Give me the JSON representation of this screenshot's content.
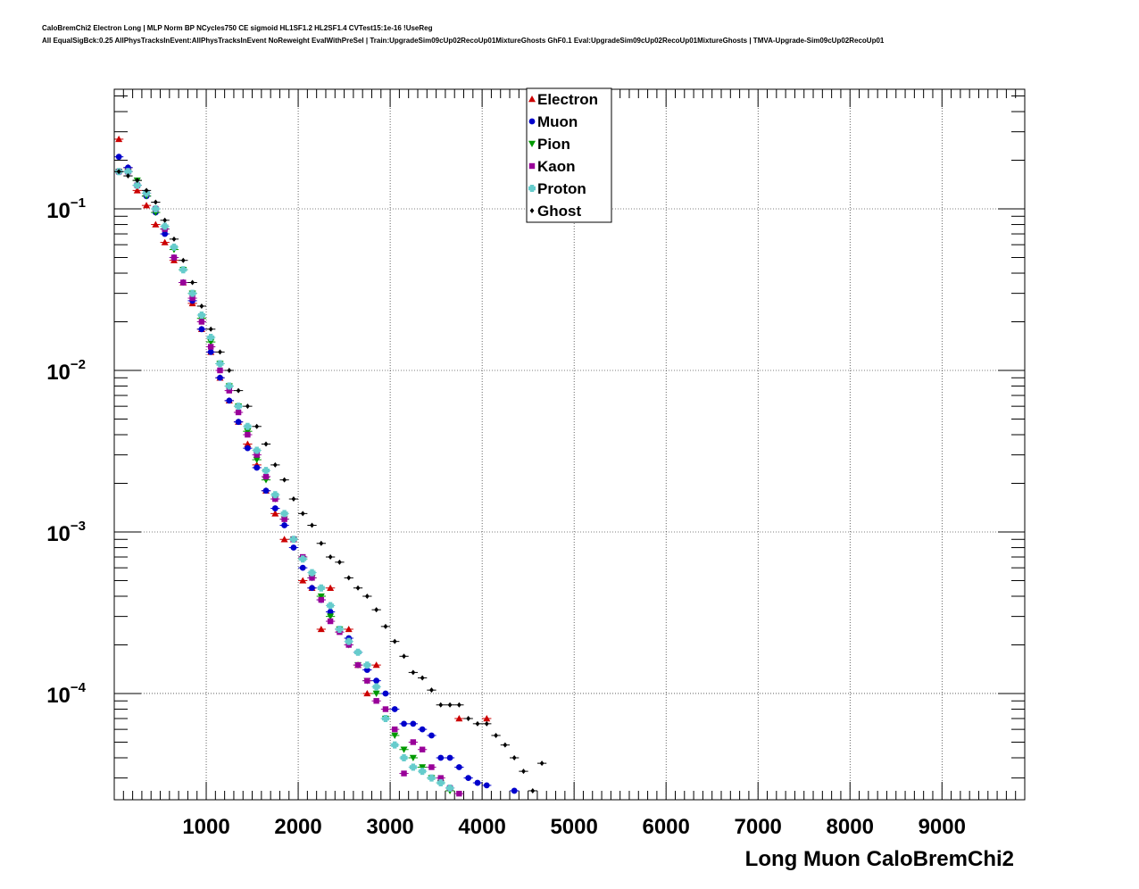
{
  "chart_data": {
    "type": "scatter",
    "title_line1": "CaloBremChi2 Electron Long | MLP Norm BP NCycles750 CE sigmoid HL1SF1.2 HL2SF1.4 CVTest15:1e-16 !UseReg",
    "title_line2": "All EqualSigBck:0.25 AllPhysTracksInEvent:AllPhysTracksInEvent NoReweight EvalWithPreSel | Train:UpgradeSim09cUp02RecoUp01MixtureGhosts GhF0.1 Eval:UpgradeSim09cUp02RecoUp01MixtureGhosts | TMVA-Upgrade-Sim09cUp02RecoUp01",
    "xlabel": "Long Muon CaloBremChi2",
    "ylabel": "",
    "xlim": [
      0,
      9900
    ],
    "ylim": [
      2.2e-05,
      0.55
    ],
    "yscale": "log",
    "grid": true,
    "legend_position": "top-center",
    "x_ticks": [
      1000,
      2000,
      3000,
      4000,
      5000,
      6000,
      7000,
      8000,
      9000
    ],
    "x_tick_labels": [
      "1000",
      "2000",
      "3000",
      "4000",
      "5000",
      "6000",
      "7000",
      "8000",
      "9000"
    ],
    "y_ticks": [
      0.0001,
      0.001,
      0.01,
      0.1
    ],
    "y_tick_bases": [
      "10",
      "10",
      "10",
      "10"
    ],
    "y_tick_exps": [
      "−4",
      "−3",
      "−2",
      "−1"
    ],
    "bin_width": 100,
    "series": [
      {
        "name": "Electron",
        "color": "#cc0000",
        "marker": "triangle-up",
        "x": [
          50,
          150,
          250,
          350,
          450,
          550,
          650,
          750,
          850,
          950,
          1050,
          1150,
          1250,
          1350,
          1450,
          1550,
          1650,
          1750,
          1850,
          1950,
          2050,
          2150,
          2250,
          2350,
          2450,
          2550,
          2650,
          2750,
          2850,
          3750,
          4050
        ],
        "y": [
          0.27,
          0.18,
          0.13,
          0.105,
          0.08,
          0.062,
          0.048,
          0.035,
          0.026,
          0.018,
          0.013,
          0.009,
          0.0065,
          0.0048,
          0.0035,
          0.0026,
          0.0018,
          0.0013,
          0.0009,
          0.0009,
          0.0005,
          0.00045,
          0.00025,
          0.00045,
          0.00025,
          0.00025,
          0.00015,
          0.0001,
          0.00015,
          7e-05,
          7e-05
        ]
      },
      {
        "name": "Muon",
        "color": "#0000cc",
        "marker": "circle",
        "x": [
          50,
          150,
          250,
          350,
          450,
          550,
          650,
          750,
          850,
          950,
          1050,
          1150,
          1250,
          1350,
          1450,
          1550,
          1650,
          1750,
          1850,
          1950,
          2050,
          2150,
          2250,
          2350,
          2450,
          2550,
          2650,
          2750,
          2850,
          2950,
          3050,
          3150,
          3250,
          3350,
          3450,
          3550,
          3650,
          3750,
          3850,
          3950,
          4050,
          4350
        ],
        "y": [
          0.21,
          0.18,
          0.14,
          0.12,
          0.095,
          0.07,
          0.05,
          0.035,
          0.027,
          0.018,
          0.013,
          0.009,
          0.0065,
          0.0048,
          0.0033,
          0.0025,
          0.0018,
          0.0014,
          0.0011,
          0.0008,
          0.0006,
          0.00045,
          0.00038,
          0.00032,
          0.00025,
          0.00022,
          0.00018,
          0.00014,
          0.00012,
          0.0001,
          8e-05,
          6.5e-05,
          6.5e-05,
          6e-05,
          5.5e-05,
          4e-05,
          4e-05,
          3.5e-05,
          3e-05,
          2.8e-05,
          2.7e-05,
          2.5e-05
        ]
      },
      {
        "name": "Pion",
        "color": "#009900",
        "marker": "triangle-down",
        "x": [
          50,
          150,
          250,
          350,
          450,
          550,
          650,
          750,
          850,
          950,
          1050,
          1150,
          1250,
          1350,
          1450,
          1550,
          1650,
          1750,
          1850,
          1950,
          2050,
          2150,
          2250,
          2350,
          2450,
          2550,
          2650,
          2750,
          2850,
          2950,
          3050,
          3150,
          3250,
          3350,
          3450,
          3550,
          3650
        ],
        "y": [
          0.17,
          0.17,
          0.15,
          0.12,
          0.095,
          0.075,
          0.056,
          0.042,
          0.03,
          0.021,
          0.015,
          0.011,
          0.008,
          0.006,
          0.0042,
          0.0028,
          0.0021,
          0.0016,
          0.0012,
          0.0009,
          0.00068,
          0.00052,
          0.0004,
          0.0003,
          0.00025,
          0.0002,
          0.00015,
          0.00012,
          0.0001,
          7e-05,
          5.5e-05,
          4.5e-05,
          4e-05,
          3.5e-05,
          3e-05,
          2.8e-05,
          2.5e-05
        ]
      },
      {
        "name": "Kaon",
        "color": "#990099",
        "marker": "square",
        "x": [
          50,
          150,
          250,
          350,
          450,
          550,
          650,
          750,
          850,
          950,
          1050,
          1150,
          1250,
          1350,
          1450,
          1550,
          1650,
          1750,
          1850,
          1950,
          2050,
          2150,
          2250,
          2350,
          2450,
          2550,
          2650,
          2750,
          2850,
          2950,
          3050,
          3150,
          3250,
          3350,
          3450,
          3550,
          3650,
          3750
        ],
        "y": [
          0.17,
          0.17,
          0.14,
          0.125,
          0.1,
          0.075,
          0.05,
          0.035,
          0.028,
          0.02,
          0.014,
          0.01,
          0.0075,
          0.0055,
          0.004,
          0.003,
          0.0022,
          0.0016,
          0.0012,
          0.0009,
          0.0007,
          0.00052,
          0.00038,
          0.00028,
          0.00024,
          0.0002,
          0.00015,
          0.00012,
          9e-05,
          8e-05,
          6e-05,
          3.2e-05,
          5e-05,
          4.5e-05,
          3.5e-05,
          3e-05,
          2.6e-05,
          2.4e-05
        ]
      },
      {
        "name": "Proton",
        "color": "#66cccc",
        "marker": "cross",
        "x": [
          50,
          150,
          250,
          350,
          450,
          550,
          650,
          750,
          850,
          950,
          1050,
          1150,
          1250,
          1350,
          1450,
          1550,
          1650,
          1750,
          1850,
          1950,
          2050,
          2150,
          2250,
          2350,
          2450,
          2550,
          2650,
          2750,
          2850,
          2950,
          3050,
          3150,
          3250,
          3350,
          3450,
          3550,
          3650
        ],
        "y": [
          0.17,
          0.17,
          0.14,
          0.125,
          0.1,
          0.078,
          0.058,
          0.042,
          0.03,
          0.022,
          0.016,
          0.011,
          0.008,
          0.006,
          0.0045,
          0.0032,
          0.0024,
          0.0017,
          0.0013,
          0.0009,
          0.00068,
          0.00056,
          0.00045,
          0.00035,
          0.00025,
          0.00021,
          0.00018,
          0.00015,
          0.00011,
          7e-05,
          4.8e-05,
          4e-05,
          3.5e-05,
          3.3e-05,
          3e-05,
          2.8e-05,
          2.6e-05
        ]
      },
      {
        "name": "Ghost",
        "color": "#000000",
        "marker": "diamond",
        "x": [
          50,
          150,
          250,
          350,
          450,
          550,
          650,
          750,
          850,
          950,
          1050,
          1150,
          1250,
          1350,
          1450,
          1550,
          1650,
          1750,
          1850,
          1950,
          2050,
          2150,
          2250,
          2350,
          2450,
          2550,
          2650,
          2750,
          2850,
          2950,
          3050,
          3150,
          3250,
          3350,
          3450,
          3550,
          3650,
          3750,
          3850,
          3950,
          4050,
          4150,
          4250,
          4350,
          4450,
          4550,
          4650
        ],
        "y": [
          0.17,
          0.16,
          0.15,
          0.13,
          0.11,
          0.085,
          0.065,
          0.048,
          0.035,
          0.025,
          0.018,
          0.013,
          0.01,
          0.0075,
          0.006,
          0.0045,
          0.0035,
          0.0026,
          0.0021,
          0.0016,
          0.0013,
          0.0011,
          0.00085,
          0.0007,
          0.00065,
          0.00052,
          0.00045,
          0.0004,
          0.00033,
          0.00026,
          0.00021,
          0.00017,
          0.000135,
          0.000125,
          0.000105,
          8.5e-05,
          8.5e-05,
          8.5e-05,
          7e-05,
          6.5e-05,
          6.5e-05,
          5.5e-05,
          4.8e-05,
          4e-05,
          3.3e-05,
          2.5e-05,
          3.7e-05
        ]
      }
    ]
  }
}
